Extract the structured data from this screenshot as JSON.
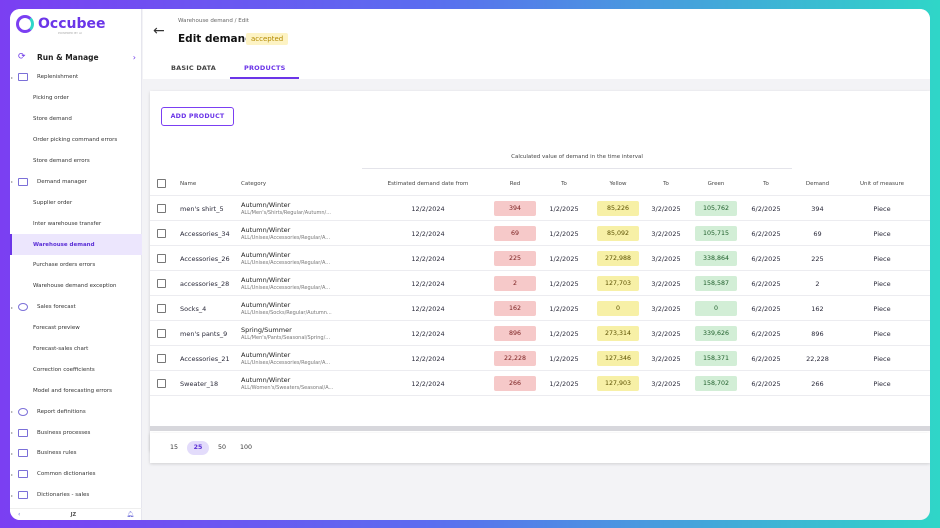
{
  "app": {
    "name": "Occubee",
    "subtitle": "POWERED BY AI"
  },
  "sidebar": {
    "section": "Run & Manage",
    "items": [
      {
        "label": "Replenishment",
        "type": "group",
        "icon": "cart-icon"
      },
      {
        "label": "Picking order",
        "type": "sub"
      },
      {
        "label": "Store demand",
        "type": "sub"
      },
      {
        "label": "Order picking command errors",
        "type": "sub"
      },
      {
        "label": "Store demand errors",
        "type": "sub"
      },
      {
        "label": "Demand manager",
        "type": "group",
        "icon": "cart-icon"
      },
      {
        "label": "Supplier order",
        "type": "sub"
      },
      {
        "label": "Inter warehouse transfer",
        "type": "sub"
      },
      {
        "label": "Warehouse demand",
        "type": "sub",
        "active": true
      },
      {
        "label": "Purchase orders errors",
        "type": "sub"
      },
      {
        "label": "Warehouse demand exception",
        "type": "sub"
      },
      {
        "label": "Sales forecast",
        "type": "group",
        "icon": "bulb-icon"
      },
      {
        "label": "Forecast preview",
        "type": "sub"
      },
      {
        "label": "Forecast-sales chart",
        "type": "sub"
      },
      {
        "label": "Correction coefficients",
        "type": "sub"
      },
      {
        "label": "Model and forecasting errors",
        "type": "sub"
      },
      {
        "label": "Report definitions",
        "type": "group",
        "icon": "chart-icon"
      },
      {
        "label": "Business processes",
        "type": "group",
        "icon": "arrows-icon"
      },
      {
        "label": "Business rules",
        "type": "group",
        "icon": "rules-icon"
      },
      {
        "label": "Common dictionaries",
        "type": "group",
        "icon": "book-icon"
      },
      {
        "label": "Dictionaries - sales",
        "type": "group",
        "icon": "book-icon"
      }
    ],
    "footer": {
      "avatar": "JZ"
    }
  },
  "header": {
    "breadcrumb": "Warehouse demand / Edit",
    "title": "Edit demand",
    "status": "accepted",
    "tabs": [
      {
        "label": "BASIC DATA",
        "active": false
      },
      {
        "label": "PRODUCTS",
        "active": true
      }
    ]
  },
  "toolbar": {
    "add_label": "ADD PRODUCT"
  },
  "table": {
    "group_header": "Calculated value of demand in the time interval",
    "columns": [
      "Name",
      "Category",
      "Estimated demand date from",
      "Red",
      "To",
      "Yellow",
      "To",
      "Green",
      "To",
      "Demand",
      "Unit of measure"
    ],
    "rows": [
      {
        "name": "men's shirt_5",
        "cat1": "Autumn/Winter",
        "cat2": "ALL/Men's/Shirts/Regular/Autumn/...",
        "est": "12/2/2024",
        "red": "394",
        "to1": "1/2/2025",
        "yellow": "85,226",
        "to2": "3/2/2025",
        "green": "105,762",
        "to3": "6/2/2025",
        "demand": "394",
        "uom": "Piece"
      },
      {
        "name": "Accessories_34",
        "cat1": "Autumn/Winter",
        "cat2": "ALL/Unisex/Accessories/Regular/A...",
        "est": "12/2/2024",
        "red": "69",
        "to1": "1/2/2025",
        "yellow": "85,092",
        "to2": "3/2/2025",
        "green": "105,715",
        "to3": "6/2/2025",
        "demand": "69",
        "uom": "Piece"
      },
      {
        "name": "Accessories_26",
        "cat1": "Autumn/Winter",
        "cat2": "ALL/Unisex/Accessories/Regular/A...",
        "est": "12/2/2024",
        "red": "225",
        "to1": "1/2/2025",
        "yellow": "272,988",
        "to2": "3/2/2025",
        "green": "338,864",
        "to3": "6/2/2025",
        "demand": "225",
        "uom": "Piece"
      },
      {
        "name": "accessories_28",
        "cat1": "Autumn/Winter",
        "cat2": "ALL/Unisex/Accessories/Regular/A...",
        "est": "12/2/2024",
        "red": "2",
        "to1": "1/2/2025",
        "yellow": "127,703",
        "to2": "3/2/2025",
        "green": "158,587",
        "to3": "6/2/2025",
        "demand": "2",
        "uom": "Piece"
      },
      {
        "name": "Socks_4",
        "cat1": "Autumn/Winter",
        "cat2": "ALL/Unisex/Socks/Regular/Autumn...",
        "est": "12/2/2024",
        "red": "162",
        "to1": "1/2/2025",
        "yellow": "0",
        "to2": "3/2/2025",
        "green": "0",
        "to3": "6/2/2025",
        "demand": "162",
        "uom": "Piece"
      },
      {
        "name": "men's pants_9",
        "cat1": "Spring/Summer",
        "cat2": "ALL/Men's/Pants/Seasonal/Spring/...",
        "est": "12/2/2024",
        "red": "896",
        "to1": "1/2/2025",
        "yellow": "273,314",
        "to2": "3/2/2025",
        "green": "339,626",
        "to3": "6/2/2025",
        "demand": "896",
        "uom": "Piece"
      },
      {
        "name": "Accessories_21",
        "cat1": "Autumn/Winter",
        "cat2": "ALL/Unisex/Accessories/Regular/A...",
        "est": "12/2/2024",
        "red": "22,228",
        "to1": "1/2/2025",
        "yellow": "127,346",
        "to2": "3/2/2025",
        "green": "158,371",
        "to3": "6/2/2025",
        "demand": "22,228",
        "uom": "Piece"
      },
      {
        "name": "Sweater_18",
        "cat1": "Autumn/Winter",
        "cat2": "ALL/Women's/Sweaters/Seasonal/A...",
        "est": "12/2/2024",
        "red": "266",
        "to1": "1/2/2025",
        "yellow": "127,903",
        "to2": "3/2/2025",
        "green": "158,702",
        "to3": "6/2/2025",
        "demand": "266",
        "uom": "Piece"
      }
    ]
  },
  "pager": {
    "sizes": [
      "15",
      "25",
      "50",
      "100"
    ],
    "active": "25"
  },
  "colors": {
    "accent": "#6b35e8",
    "red_pill": "#f6c9c9",
    "yellow_pill": "#f7f0a6",
    "green_pill": "#d2eed6"
  }
}
